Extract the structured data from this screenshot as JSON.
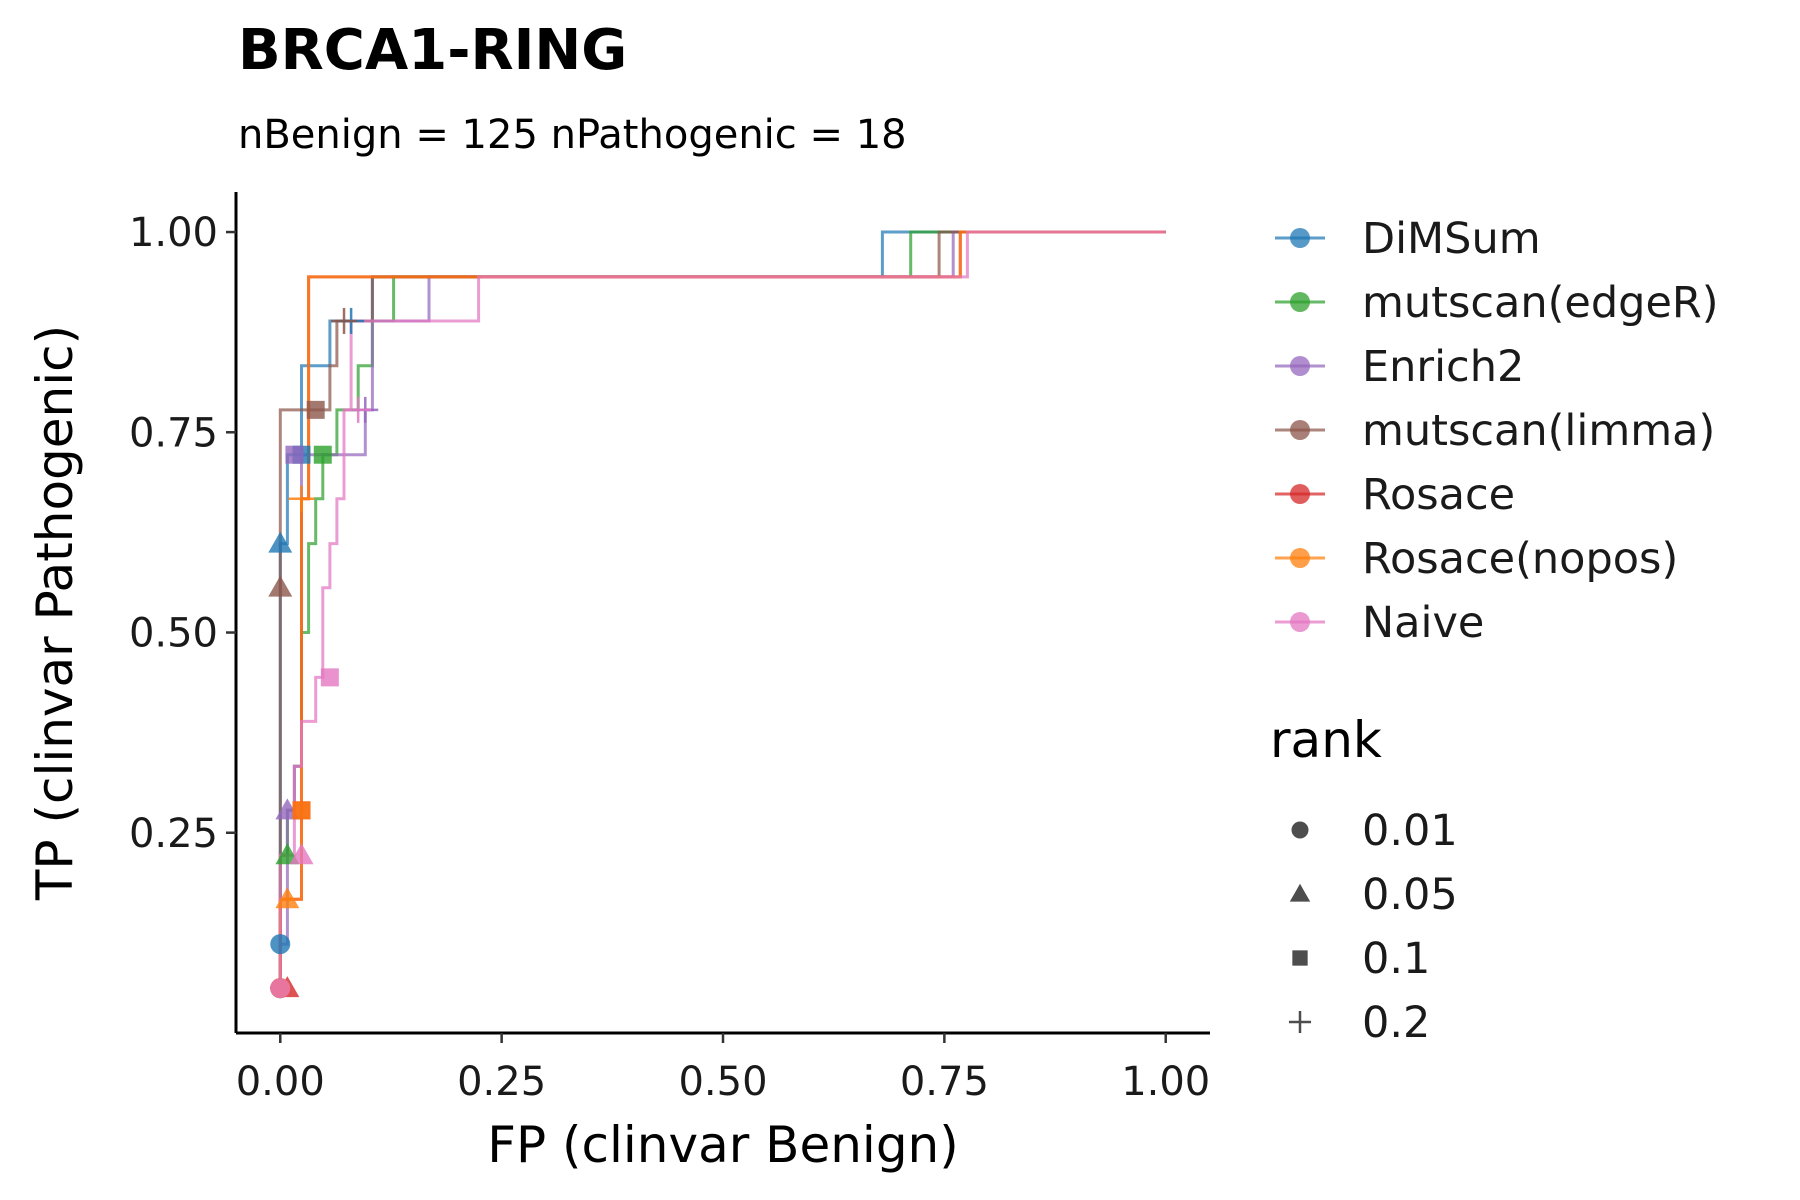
{
  "chart_data": {
    "type": "line",
    "title": "BRCA1-RING",
    "subtitle": "nBenign = 125 nPathogenic = 18",
    "xlabel": "FP (clinvar Benign)",
    "ylabel": "TP (clinvar Pathogenic)",
    "xlim": [
      -0.05,
      1.05
    ],
    "ylim": [
      0.0,
      1.05
    ],
    "xticks": [
      "0.00",
      "0.25",
      "0.50",
      "0.75",
      "1.00"
    ],
    "xtick_values": [
      0,
      0.25,
      0.5,
      0.75,
      1.0
    ],
    "yticks": [
      "0.25",
      "0.50",
      "0.75",
      "1.00"
    ],
    "ytick_values": [
      0.25,
      0.5,
      0.75,
      1.0
    ],
    "grid": false,
    "legend_position": "right",
    "series": [
      {
        "name": "DiMSum",
        "color": "#1f77b4",
        "x": [
          0.0,
          0.0,
          0.008,
          0.008,
          0.024,
          0.024,
          0.04,
          0.04,
          0.056,
          0.056,
          0.08,
          0.08,
          0.104,
          0.104,
          0.68,
          0.68,
          1.0
        ],
        "y": [
          0.056,
          0.611,
          0.611,
          0.722,
          0.722,
          0.833,
          0.833,
          0.833,
          0.833,
          0.889,
          0.889,
          0.889,
          0.889,
          0.944,
          0.944,
          1.0,
          1.0
        ],
        "markers": [
          {
            "x": 0.0,
            "y": 0.111,
            "rank": "0.01"
          },
          {
            "x": 0.0,
            "y": 0.611,
            "rank": "0.05"
          },
          {
            "x": 0.024,
            "y": 0.722,
            "rank": "0.1"
          }
        ]
      },
      {
        "name": "mutscan(edgeR)",
        "color": "#2ca02c",
        "x": [
          0.0,
          0.0,
          0.008,
          0.008,
          0.016,
          0.016,
          0.024,
          0.024,
          0.032,
          0.032,
          0.04,
          0.04,
          0.048,
          0.048,
          0.064,
          0.064,
          0.088,
          0.088,
          0.104,
          0.104,
          0.128,
          0.128,
          0.712,
          0.712,
          1.0
        ],
        "y": [
          0.056,
          0.222,
          0.222,
          0.278,
          0.278,
          0.333,
          0.333,
          0.5,
          0.5,
          0.611,
          0.611,
          0.667,
          0.667,
          0.722,
          0.722,
          0.778,
          0.778,
          0.833,
          0.833,
          0.889,
          0.889,
          0.944,
          0.944,
          1.0,
          1.0
        ],
        "markers": [
          {
            "x": 0.0,
            "y": 0.056,
            "rank": "0.01"
          },
          {
            "x": 0.008,
            "y": 0.222,
            "rank": "0.05"
          },
          {
            "x": 0.048,
            "y": 0.722,
            "rank": "0.1"
          }
        ]
      },
      {
        "name": "Enrich2",
        "color": "#9467bd",
        "x": [
          0.0,
          0.0,
          0.008,
          0.008,
          0.016,
          0.016,
          0.024,
          0.024,
          0.096,
          0.096,
          0.104,
          0.104,
          0.168,
          0.168,
          0.76,
          0.76,
          1.0
        ],
        "y": [
          0.056,
          0.111,
          0.111,
          0.278,
          0.278,
          0.333,
          0.333,
          0.722,
          0.722,
          0.778,
          0.778,
          0.889,
          0.889,
          0.944,
          0.944,
          1.0,
          1.0
        ],
        "markers": [
          {
            "x": 0.0,
            "y": 0.056,
            "rank": "0.01"
          },
          {
            "x": 0.008,
            "y": 0.278,
            "rank": "0.05"
          },
          {
            "x": 0.016,
            "y": 0.722,
            "rank": "0.1"
          }
        ]
      },
      {
        "name": "mutscan(limma)",
        "color": "#8c564b",
        "x": [
          0.0,
          0.0,
          0.056,
          0.056,
          0.064,
          0.064,
          0.104,
          0.104,
          0.744,
          0.744,
          1.0
        ],
        "y": [
          0.056,
          0.778,
          0.778,
          0.833,
          0.833,
          0.889,
          0.889,
          0.944,
          0.944,
          1.0,
          1.0
        ],
        "markers": [
          {
            "x": 0.0,
            "y": 0.056,
            "rank": "0.01"
          },
          {
            "x": 0.0,
            "y": 0.556,
            "rank": "0.05"
          },
          {
            "x": 0.04,
            "y": 0.778,
            "rank": "0.1"
          }
        ]
      },
      {
        "name": "Rosace",
        "color": "#d62728",
        "x": [
          0.0,
          0.0,
          0.024,
          0.024,
          0.032,
          0.032,
          0.768,
          0.768,
          1.0
        ],
        "y": [
          0.056,
          0.167,
          0.167,
          0.667,
          0.667,
          0.944,
          0.944,
          1.0,
          1.0
        ],
        "markers": [
          {
            "x": 0.0,
            "y": 0.056,
            "rank": "0.01"
          },
          {
            "x": 0.008,
            "y": 0.056,
            "rank": "0.05"
          },
          {
            "x": 0.024,
            "y": 0.278,
            "rank": "0.1"
          }
        ]
      },
      {
        "name": "Rosace(nopos)",
        "color": "#ff7f0e",
        "x": [
          0.0,
          0.0,
          0.024,
          0.024,
          0.032,
          0.032,
          0.768,
          0.768,
          1.0
        ],
        "y": [
          0.056,
          0.167,
          0.167,
          0.667,
          0.667,
          0.944,
          0.944,
          1.0,
          1.0
        ],
        "markers": [
          {
            "x": 0.0,
            "y": 0.056,
            "rank": "0.01"
          },
          {
            "x": 0.008,
            "y": 0.167,
            "rank": "0.05"
          },
          {
            "x": 0.024,
            "y": 0.278,
            "rank": "0.1"
          }
        ]
      },
      {
        "name": "Naive",
        "color": "#e377c2",
        "x": [
          0.0,
          0.0,
          0.016,
          0.016,
          0.024,
          0.024,
          0.04,
          0.04,
          0.048,
          0.048,
          0.056,
          0.056,
          0.064,
          0.064,
          0.072,
          0.072,
          0.08,
          0.08,
          0.224,
          0.224,
          0.776,
          0.776,
          1.0
        ],
        "y": [
          0.056,
          0.222,
          0.222,
          0.333,
          0.333,
          0.389,
          0.389,
          0.444,
          0.444,
          0.556,
          0.556,
          0.611,
          0.611,
          0.667,
          0.667,
          0.778,
          0.778,
          0.889,
          0.889,
          0.944,
          0.944,
          1.0,
          1.0
        ],
        "markers": [
          {
            "x": 0.0,
            "y": 0.056,
            "rank": "0.01"
          },
          {
            "x": 0.024,
            "y": 0.222,
            "rank": "0.05"
          },
          {
            "x": 0.056,
            "y": 0.444,
            "rank": "0.1"
          }
        ]
      }
    ],
    "plus_markers_rank_0.2": [
      {
        "series": "DiMSum",
        "x": 0.08,
        "y": 0.889
      },
      {
        "series": "Enrich2",
        "x": 0.096,
        "y": 0.778
      },
      {
        "series": "mutscan(limma)",
        "x": 0.072,
        "y": 0.889
      },
      {
        "series": "Rosace(nopos)",
        "x": 0.024,
        "y": 0.667
      },
      {
        "series": "Naive",
        "x": 0.088,
        "y": 0.778
      }
    ],
    "rank_legend": {
      "title": "rank",
      "entries": [
        {
          "label": "0.01",
          "shape": "circle"
        },
        {
          "label": "0.05",
          "shape": "triangle"
        },
        {
          "label": "0.1",
          "shape": "square"
        },
        {
          "label": "0.2",
          "shape": "plus"
        }
      ]
    }
  }
}
